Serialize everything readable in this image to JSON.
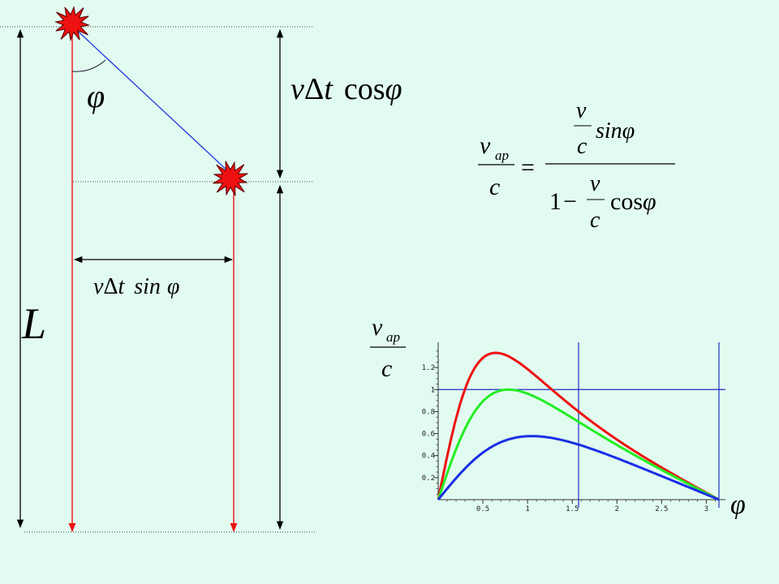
{
  "labels": {
    "phi_angle": "φ",
    "L": "L",
    "v_dt_cos": {
      "v": "v",
      "delta": "Δ",
      "t": "t",
      "cos": "cos",
      "phi": "φ"
    },
    "v_dt_sin": {
      "v": "v",
      "delta": "Δ",
      "t": "t",
      "sin": "sin",
      "phi": "φ"
    }
  },
  "formula": {
    "lhs_v": "v",
    "lhs_sub": "ap",
    "lhs_den": "c",
    "equals": "=",
    "num_v": "v",
    "num_c": "c",
    "num_sin": "sin",
    "num_phi": "φ",
    "den_one": "1",
    "den_minus": "−",
    "den_v": "v",
    "den_c": "c",
    "den_cos": "cos",
    "den_phi": "φ"
  },
  "graph_labels": {
    "ylabel_v": "v",
    "ylabel_sub": "ap",
    "ylabel_c": "c",
    "xlabel": "φ"
  },
  "colors": {
    "background": "#e2fbf0",
    "red": "#ee1111",
    "green": "#22ee22",
    "blue": "#1a2ee6",
    "axis": "#333333",
    "star": "#ee1111"
  },
  "chart_data": {
    "type": "line",
    "xlim": [
      0,
      3.1416
    ],
    "ylim": [
      0,
      1.4
    ],
    "x_ticks": [
      "0.5",
      "1",
      "1.5",
      "2",
      "2.5",
      "3"
    ],
    "y_ticks": [
      "0.2",
      "0.4",
      "0.6",
      "0.8",
      "1",
      "1.2"
    ],
    "x_tick_values": [
      0.5,
      1,
      1.5,
      2,
      2.5,
      3
    ],
    "y_tick_values": [
      0.2,
      0.4,
      0.6,
      0.8,
      1,
      1.2
    ],
    "guides": {
      "y": 1.0,
      "x": [
        1.5708,
        3.1416
      ]
    },
    "series": [
      {
        "beta": 0.8,
        "color": "#ee1111"
      },
      {
        "beta": 0.707,
        "color": "#22ee22"
      },
      {
        "beta": 0.5,
        "color": "#1a2ee6"
      }
    ]
  }
}
